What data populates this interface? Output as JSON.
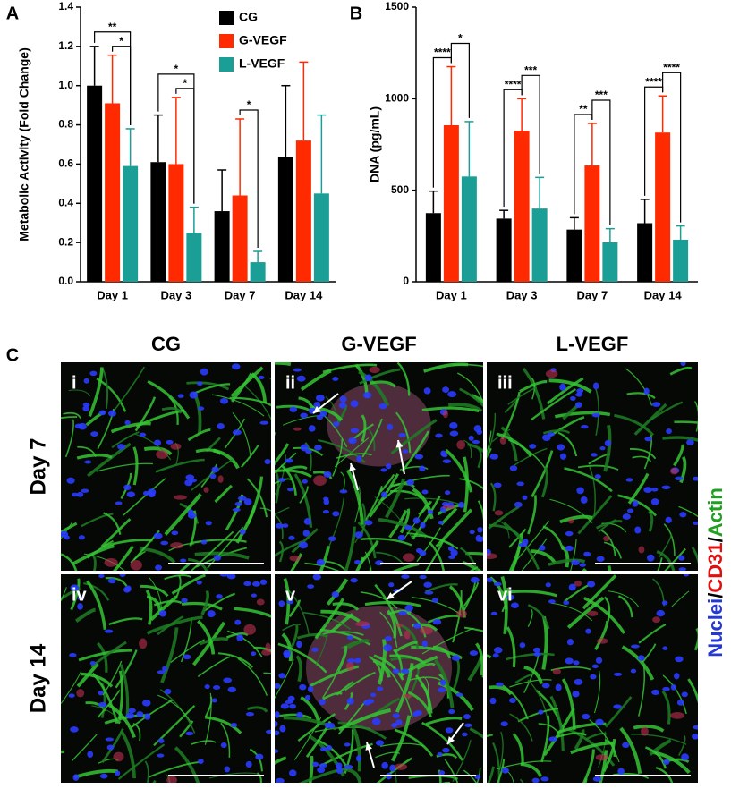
{
  "chart_data": [
    {
      "type": "bar",
      "panel_label": "A",
      "ylabel": "Metabolic Activity (Fold Change)",
      "categories": [
        "Day 1",
        "Day 3",
        "Day 7",
        "Day 14"
      ],
      "series": [
        {
          "name": "CG",
          "color": "#000000",
          "values": [
            1.0,
            0.61,
            0.36,
            0.635
          ],
          "errors": [
            0.2,
            0.24,
            0.21,
            0.365
          ]
        },
        {
          "name": "G-VEGF",
          "color": "#ff2a00",
          "values": [
            0.91,
            0.6,
            0.44,
            0.72
          ],
          "errors": [
            0.245,
            0.34,
            0.39,
            0.4
          ]
        },
        {
          "name": "L-VEGF",
          "color": "#1a9e96",
          "values": [
            0.59,
            0.25,
            0.1,
            0.45
          ],
          "errors": [
            0.19,
            0.13,
            0.055,
            0.4
          ]
        }
      ],
      "ylim": [
        0,
        1.4
      ],
      "yticks": [
        {
          "value": 0,
          "label": "0.0"
        },
        0.2,
        0.4,
        0.6,
        0.8,
        {
          "value": 1,
          "label": "1.0"
        },
        1.2,
        1.4
      ],
      "legend": true,
      "significance": [
        {
          "category": 0,
          "pair": [
            1,
            2
          ],
          "label": "*"
        },
        {
          "category": 0,
          "pair": [
            0,
            2
          ],
          "label": "**"
        },
        {
          "category": 1,
          "pair": [
            1,
            2
          ],
          "label": "*"
        },
        {
          "category": 1,
          "pair": [
            0,
            2
          ],
          "label": "*"
        },
        {
          "category": 2,
          "pair": [
            1,
            2
          ],
          "label": "*"
        }
      ]
    },
    {
      "type": "bar",
      "panel_label": "B",
      "ylabel": "DNA (pg/mL)",
      "categories": [
        "Day 1",
        "Day 3",
        "Day 7",
        "Day 14"
      ],
      "series": [
        {
          "name": "CG",
          "color": "#000000",
          "values": [
            375,
            345,
            285,
            320
          ],
          "errors": [
            120,
            45,
            65,
            130
          ]
        },
        {
          "name": "G-VEGF",
          "color": "#ff2a00",
          "values": [
            855,
            825,
            635,
            815
          ],
          "errors": [
            320,
            175,
            230,
            200
          ]
        },
        {
          "name": "L-VEGF",
          "color": "#1a9e96",
          "values": [
            575,
            400,
            215,
            230
          ],
          "errors": [
            300,
            170,
            75,
            75
          ]
        }
      ],
      "ylim": [
        0,
        1500
      ],
      "yticks": [
        0,
        500,
        1000,
        1500
      ],
      "legend": false,
      "significance": [
        {
          "category": 0,
          "pair": [
            0,
            1
          ],
          "label": "****"
        },
        {
          "category": 0,
          "pair": [
            1,
            2
          ],
          "label": "*"
        },
        {
          "category": 1,
          "pair": [
            0,
            1
          ],
          "label": "****"
        },
        {
          "category": 1,
          "pair": [
            1,
            2
          ],
          "label": "***"
        },
        {
          "category": 2,
          "pair": [
            0,
            1
          ],
          "label": "**"
        },
        {
          "category": 2,
          "pair": [
            1,
            2
          ],
          "label": "***"
        },
        {
          "category": 3,
          "pair": [
            0,
            1
          ],
          "label": "****"
        },
        {
          "category": 3,
          "pair": [
            1,
            2
          ],
          "label": "****"
        }
      ]
    }
  ],
  "panel_c": {
    "panel_label": "C",
    "columns": [
      "CG",
      "G-VEGF",
      "L-VEGF"
    ],
    "rows": [
      "Day 7",
      "Day 14"
    ],
    "images": [
      "i",
      "ii",
      "iii",
      "iv",
      "v",
      "vi"
    ],
    "stain_label": [
      "Nuclei",
      "/",
      "CD31",
      "/",
      "Actin"
    ],
    "stain_colors": [
      "#2438d8",
      "#000000",
      "#e01010",
      "#000000",
      "#1fa01f"
    ]
  }
}
